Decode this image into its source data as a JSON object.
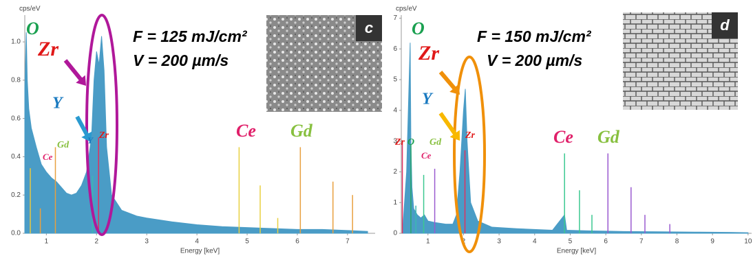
{
  "chart_data": [
    {
      "type": "area",
      "y_label": "cps/eV",
      "x_label": "Energy [keV]",
      "color": "#4a9cc6",
      "annotations": [
        "F = 125 mJ/cm²",
        "V = 200 µm/s"
      ],
      "inset_label": "c",
      "element_labels": [
        "O",
        "Zr",
        "Y",
        "Gd",
        "Ce",
        "Zr",
        "Y",
        "Ce",
        "Gd"
      ],
      "x": [
        0.57,
        0.6,
        0.62,
        0.65,
        0.7,
        0.8,
        0.9,
        1.0,
        1.1,
        1.2,
        1.3,
        1.4,
        1.5,
        1.6,
        1.7,
        1.8,
        1.9,
        1.95,
        2.0,
        2.05,
        2.1,
        2.15,
        2.2,
        2.3,
        2.5,
        2.8,
        3.0,
        3.5,
        4.0,
        4.5,
        5.0,
        5.5,
        6.0,
        6.5,
        7.0,
        7.4
      ],
      "values": [
        0.75,
        1.05,
        0.8,
        0.65,
        0.55,
        0.45,
        0.36,
        0.32,
        0.29,
        0.27,
        0.24,
        0.21,
        0.2,
        0.21,
        0.25,
        0.32,
        0.5,
        0.8,
        0.95,
        0.88,
        1.03,
        0.85,
        0.45,
        0.2,
        0.12,
        0.09,
        0.08,
        0.06,
        0.045,
        0.035,
        0.03,
        0.025,
        0.02,
        0.02,
        0.015,
        0.01
      ],
      "lines": {
        "x": [
          0.68,
          0.88,
          1.18,
          1.92,
          2.04,
          4.84,
          5.26,
          5.61,
          6.06,
          6.71,
          7.1
        ],
        "values": [
          0.34,
          0.13,
          0.45,
          0.3,
          0.5,
          0.45,
          0.25,
          0.08,
          0.45,
          0.27,
          0.2
        ],
        "colors": [
          "#e8c840",
          "#e8a040",
          "#e8a040",
          "#3bb8b0",
          "#e03060",
          "#e8d040",
          "#e8d040",
          "#e8d040",
          "#e8a040",
          "#e8a040",
          "#e8a040"
        ]
      },
      "xlim": [
        0.57,
        7.55
      ],
      "xticks": [
        1,
        2,
        3,
        4,
        5,
        6,
        7
      ],
      "ylim": [
        0,
        1.14
      ],
      "yticks": [
        {
          "value": 0,
          "label": "0.0"
        },
        0.2,
        0.4,
        0.6,
        0.8,
        {
          "value": 1,
          "label": "1.0"
        }
      ]
    },
    {
      "type": "area",
      "y_label": "cps/eV",
      "x_label": "Energy [keV]",
      "color": "#4a9cc6",
      "annotations": [
        "F = 150 mJ/cm²",
        "V = 200 µm/s"
      ],
      "inset_label": "d",
      "element_labels": [
        "O",
        "Zr",
        "Y",
        "Zr",
        "O",
        "Gd",
        "Ce",
        "Zr",
        "Ce",
        "Gd"
      ],
      "x": [
        0.3,
        0.4,
        0.5,
        0.52,
        0.55,
        0.6,
        0.7,
        0.8,
        0.9,
        1.0,
        1.2,
        1.5,
        1.7,
        1.8,
        1.9,
        2.0,
        2.05,
        2.1,
        2.2,
        2.4,
        2.8,
        3.5,
        4.5,
        4.84,
        4.9,
        5.5,
        6.5,
        7.5,
        8.5,
        9.5,
        10.0
      ],
      "values": [
        0.3,
        2.0,
        6.2,
        3.0,
        1.5,
        0.8,
        0.6,
        0.5,
        0.6,
        0.4,
        0.35,
        0.3,
        0.3,
        0.6,
        2.0,
        4.0,
        4.7,
        3.0,
        1.0,
        0.4,
        0.2,
        0.15,
        0.1,
        0.6,
        0.1,
        0.08,
        0.06,
        0.05,
        0.04,
        0.03,
        0.02
      ],
      "lines": {
        "x": [
          0.28,
          0.52,
          0.66,
          0.88,
          1.19,
          2.04,
          4.84,
          5.26,
          5.61,
          6.06,
          6.71,
          7.1,
          7.8
        ],
        "values": [
          3.0,
          2.9,
          0.9,
          1.9,
          2.1,
          2.7,
          2.6,
          1.4,
          0.6,
          2.6,
          1.5,
          0.6,
          0.3
        ],
        "colors": [
          "#e03060",
          "#2aa86a",
          "#3bb8b0",
          "#3bc890",
          "#9a5ad0",
          "#e03060",
          "#3bc890",
          "#3bc890",
          "#3bc890",
          "#9a5ad0",
          "#9a5ad0",
          "#9a5ad0",
          "#9a5ad0"
        ]
      },
      "xlim": [
        0.25,
        10.1
      ],
      "xticks": [
        1,
        2,
        3,
        4,
        5,
        6,
        7,
        8,
        9,
        10
      ],
      "ylim": [
        0,
        7.1
      ],
      "yticks": [
        0,
        1,
        2,
        3,
        4,
        5,
        6,
        7
      ]
    }
  ]
}
